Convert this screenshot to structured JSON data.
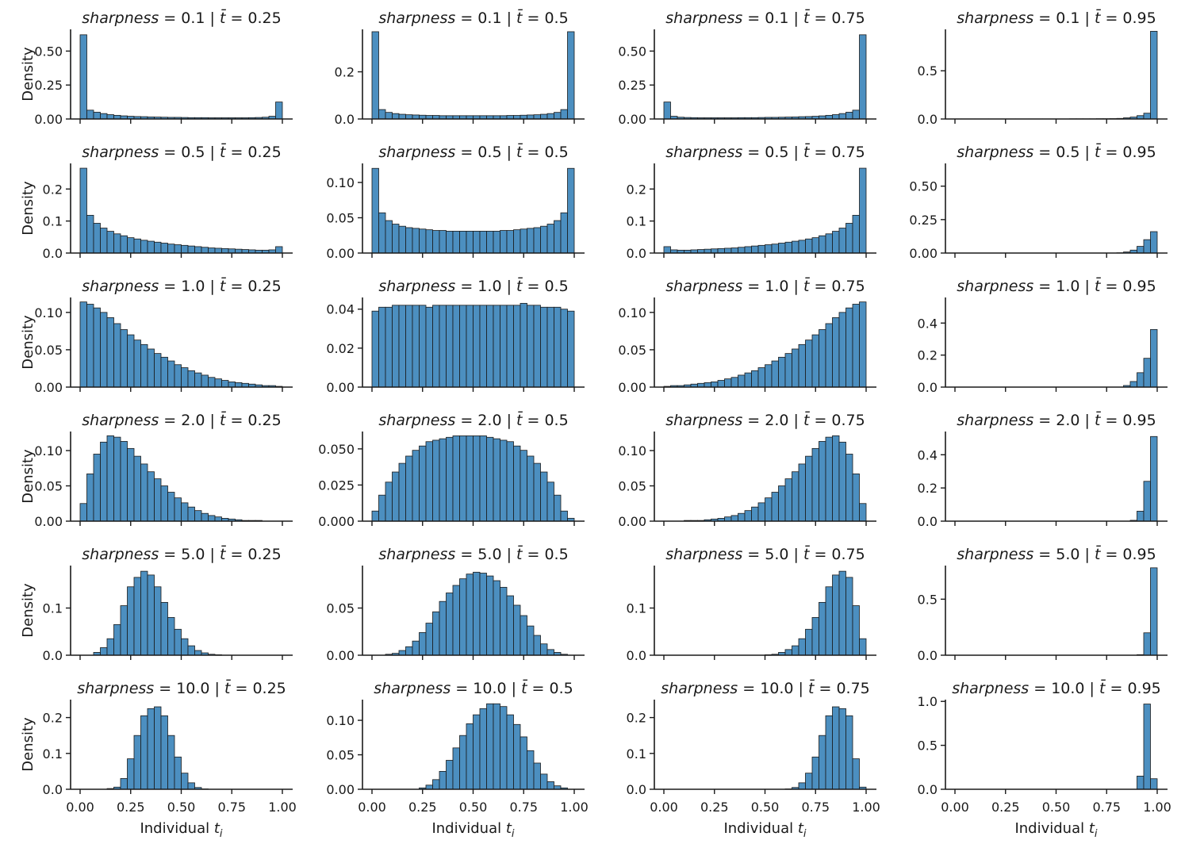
{
  "figure": {
    "bar_color": "#4c8fc0",
    "edge_color": "#1a1a1a",
    "ylabel": "Density",
    "xlabel_text": "Individual ",
    "xlabel_var": "t",
    "xlabel_sub": "i",
    "title_var": "sharpness",
    "title_tbar": "t̄",
    "x_ticks": [
      "0.00",
      "0.25",
      "0.50",
      "0.75",
      "1.00"
    ]
  },
  "chart_data": {
    "type": "histogram-grid",
    "bins": 30,
    "x_range": [
      0,
      1
    ],
    "sharpness_values": [
      "0.1",
      "0.5",
      "1.0",
      "2.0",
      "5.0",
      "10.0"
    ],
    "tbar_values": [
      "0.25",
      "0.5",
      "0.75",
      "0.95"
    ],
    "panels": [
      {
        "sharpness": "0.1",
        "tbar": "0.25",
        "ylim": [
          0,
          0.66
        ],
        "yticks": [
          "0.00",
          "0.25",
          "0.50"
        ],
        "values": [
          0.62,
          0.065,
          0.05,
          0.04,
          0.032,
          0.027,
          0.023,
          0.02,
          0.018,
          0.017,
          0.015,
          0.014,
          0.013,
          0.012,
          0.012,
          0.011,
          0.01,
          0.01,
          0.01,
          0.009,
          0.009,
          0.009,
          0.009,
          0.009,
          0.009,
          0.01,
          0.011,
          0.013,
          0.02,
          0.125
        ]
      },
      {
        "sharpness": "0.1",
        "tbar": "0.5",
        "ylim": [
          0,
          0.38
        ],
        "yticks": [
          "0.0",
          "0.2"
        ],
        "values": [
          0.37,
          0.04,
          0.028,
          0.023,
          0.02,
          0.018,
          0.017,
          0.016,
          0.015,
          0.015,
          0.014,
          0.014,
          0.014,
          0.014,
          0.014,
          0.014,
          0.014,
          0.014,
          0.014,
          0.014,
          0.015,
          0.015,
          0.016,
          0.017,
          0.018,
          0.02,
          0.023,
          0.028,
          0.04,
          0.37
        ]
      },
      {
        "sharpness": "0.1",
        "tbar": "0.75",
        "ylim": [
          0,
          0.66
        ],
        "yticks": [
          "0.00",
          "0.25",
          "0.50"
        ],
        "values": [
          0.125,
          0.02,
          0.013,
          0.011,
          0.01,
          0.009,
          0.009,
          0.009,
          0.009,
          0.009,
          0.009,
          0.01,
          0.01,
          0.01,
          0.011,
          0.012,
          0.012,
          0.013,
          0.014,
          0.015,
          0.017,
          0.018,
          0.02,
          0.023,
          0.027,
          0.032,
          0.04,
          0.05,
          0.065,
          0.62
        ]
      },
      {
        "sharpness": "0.1",
        "tbar": "0.95",
        "ylim": [
          0,
          0.93
        ],
        "yticks": [
          "0.0",
          "0.5"
        ],
        "values": [
          0.001,
          0.001,
          0.001,
          0.001,
          0.001,
          0.001,
          0.001,
          0.001,
          0.001,
          0.001,
          0.001,
          0.001,
          0.001,
          0.001,
          0.001,
          0.001,
          0.001,
          0.002,
          0.002,
          0.002,
          0.002,
          0.003,
          0.003,
          0.004,
          0.006,
          0.012,
          0.02,
          0.035,
          0.06,
          0.91
        ]
      },
      {
        "sharpness": "0.5",
        "tbar": "0.25",
        "ylim": [
          0,
          0.28
        ],
        "yticks": [
          "0.0",
          "0.1",
          "0.2"
        ],
        "values": [
          0.265,
          0.118,
          0.093,
          0.078,
          0.068,
          0.06,
          0.054,
          0.048,
          0.044,
          0.04,
          0.037,
          0.034,
          0.031,
          0.028,
          0.026,
          0.024,
          0.022,
          0.02,
          0.018,
          0.016,
          0.015,
          0.014,
          0.013,
          0.012,
          0.011,
          0.01,
          0.009,
          0.009,
          0.01,
          0.02
        ]
      },
      {
        "sharpness": "0.5",
        "tbar": "0.5",
        "ylim": [
          0,
          0.127
        ],
        "yticks": [
          "0.00",
          "0.05",
          "0.10"
        ],
        "values": [
          0.12,
          0.057,
          0.046,
          0.041,
          0.038,
          0.036,
          0.035,
          0.034,
          0.033,
          0.032,
          0.032,
          0.031,
          0.031,
          0.031,
          0.031,
          0.031,
          0.031,
          0.031,
          0.031,
          0.032,
          0.032,
          0.033,
          0.034,
          0.035,
          0.036,
          0.038,
          0.041,
          0.046,
          0.057,
          0.12
        ]
      },
      {
        "sharpness": "0.5",
        "tbar": "0.75",
        "ylim": [
          0,
          0.28
        ],
        "yticks": [
          "0.0",
          "0.1",
          "0.2"
        ],
        "values": [
          0.02,
          0.01,
          0.009,
          0.009,
          0.01,
          0.011,
          0.012,
          0.013,
          0.014,
          0.015,
          0.016,
          0.018,
          0.02,
          0.022,
          0.024,
          0.026,
          0.028,
          0.031,
          0.034,
          0.037,
          0.04,
          0.044,
          0.048,
          0.054,
          0.06,
          0.068,
          0.078,
          0.093,
          0.118,
          0.265
        ]
      },
      {
        "sharpness": "0.5",
        "tbar": "0.95",
        "ylim": [
          0,
          0.67
        ],
        "yticks": [
          "0.00",
          "0.25",
          "0.50"
        ],
        "values": [
          0,
          0,
          0,
          0,
          0,
          0,
          0,
          0,
          0,
          0,
          0,
          0,
          0,
          0,
          0,
          0,
          0,
          0,
          0,
          0,
          0,
          0,
          0,
          0,
          0.002,
          0.008,
          0.022,
          0.05,
          0.1,
          0.16
        ]
      },
      {
        "sharpness": "1.0",
        "tbar": "0.25",
        "ylim": [
          0,
          0.12
        ],
        "yticks": [
          "0.00",
          "0.05",
          "0.10"
        ],
        "values": [
          0.114,
          0.111,
          0.106,
          0.1,
          0.093,
          0.085,
          0.077,
          0.07,
          0.063,
          0.057,
          0.051,
          0.045,
          0.04,
          0.035,
          0.03,
          0.026,
          0.022,
          0.019,
          0.016,
          0.013,
          0.011,
          0.009,
          0.007,
          0.006,
          0.005,
          0.004,
          0.003,
          0.002,
          0.002,
          0.001
        ]
      },
      {
        "sharpness": "1.0",
        "tbar": "0.5",
        "ylim": [
          0,
          0.046
        ],
        "yticks": [
          "0.00",
          "0.02",
          "0.04"
        ],
        "values": [
          0.039,
          0.041,
          0.041,
          0.042,
          0.042,
          0.042,
          0.042,
          0.042,
          0.041,
          0.042,
          0.042,
          0.042,
          0.042,
          0.042,
          0.042,
          0.042,
          0.042,
          0.042,
          0.042,
          0.042,
          0.042,
          0.042,
          0.043,
          0.042,
          0.042,
          0.041,
          0.041,
          0.041,
          0.04,
          0.039
        ]
      },
      {
        "sharpness": "1.0",
        "tbar": "0.75",
        "ylim": [
          0,
          0.12
        ],
        "yticks": [
          "0.00",
          "0.05",
          "0.10"
        ],
        "values": [
          0.001,
          0.002,
          0.002,
          0.003,
          0.004,
          0.005,
          0.006,
          0.007,
          0.009,
          0.011,
          0.013,
          0.016,
          0.019,
          0.022,
          0.026,
          0.03,
          0.035,
          0.04,
          0.045,
          0.051,
          0.057,
          0.063,
          0.07,
          0.077,
          0.085,
          0.093,
          0.1,
          0.106,
          0.111,
          0.114
        ]
      },
      {
        "sharpness": "1.0",
        "tbar": "0.95",
        "ylim": [
          0,
          0.56
        ],
        "yticks": [
          "0.0",
          "0.2",
          "0.4"
        ],
        "values": [
          0,
          0,
          0,
          0,
          0,
          0,
          0,
          0,
          0,
          0,
          0,
          0,
          0,
          0,
          0,
          0,
          0,
          0,
          0,
          0,
          0,
          0,
          0,
          0,
          0,
          0.01,
          0.035,
          0.09,
          0.18,
          0.36
        ]
      },
      {
        "sharpness": "2.0",
        "tbar": "0.25",
        "ylim": [
          0,
          0.127
        ],
        "yticks": [
          "0.00",
          "0.05",
          "0.10"
        ],
        "values": [
          0.025,
          0.067,
          0.095,
          0.112,
          0.121,
          0.119,
          0.113,
          0.103,
          0.092,
          0.081,
          0.07,
          0.06,
          0.05,
          0.041,
          0.033,
          0.026,
          0.02,
          0.015,
          0.011,
          0.008,
          0.006,
          0.004,
          0.003,
          0.002,
          0.001,
          0.001,
          0.001,
          0,
          0,
          0
        ]
      },
      {
        "sharpness": "2.0",
        "tbar": "0.5",
        "ylim": [
          0,
          0.062
        ],
        "yticks": [
          "0.000",
          "0.025",
          "0.050"
        ],
        "values": [
          0.007,
          0.018,
          0.027,
          0.034,
          0.04,
          0.045,
          0.049,
          0.052,
          0.055,
          0.056,
          0.057,
          0.058,
          0.059,
          0.059,
          0.059,
          0.059,
          0.059,
          0.058,
          0.057,
          0.056,
          0.055,
          0.052,
          0.049,
          0.045,
          0.04,
          0.034,
          0.027,
          0.018,
          0.007,
          0.002
        ]
      },
      {
        "sharpness": "2.0",
        "tbar": "0.75",
        "ylim": [
          0,
          0.127
        ],
        "yticks": [
          "0.00",
          "0.05",
          "0.10"
        ],
        "values": [
          0,
          0,
          0,
          0.001,
          0.001,
          0.001,
          0.002,
          0.003,
          0.004,
          0.006,
          0.008,
          0.011,
          0.015,
          0.02,
          0.026,
          0.033,
          0.041,
          0.05,
          0.06,
          0.07,
          0.081,
          0.092,
          0.103,
          0.113,
          0.119,
          0.121,
          0.112,
          0.095,
          0.067,
          0.025
        ]
      },
      {
        "sharpness": "2.0",
        "tbar": "0.95",
        "ylim": [
          0,
          0.54
        ],
        "yticks": [
          "0.0",
          "0.2",
          "0.4"
        ],
        "values": [
          0,
          0,
          0,
          0,
          0,
          0,
          0,
          0,
          0,
          0,
          0,
          0,
          0,
          0,
          0,
          0,
          0,
          0,
          0,
          0,
          0,
          0,
          0,
          0,
          0,
          0,
          0.005,
          0.06,
          0.24,
          0.51
        ]
      },
      {
        "sharpness": "5.0",
        "tbar": "0.25",
        "ylim": [
          0,
          0.19
        ],
        "yticks": [
          "0.0",
          "0.1"
        ],
        "values": [
          0,
          0,
          0.006,
          0.016,
          0.035,
          0.065,
          0.105,
          0.145,
          0.165,
          0.178,
          0.17,
          0.145,
          0.112,
          0.08,
          0.055,
          0.035,
          0.02,
          0.01,
          0.005,
          0.002,
          0.001,
          0,
          0,
          0,
          0,
          0,
          0,
          0,
          0,
          0
        ]
      },
      {
        "sharpness": "5.0",
        "tbar": "0.5",
        "ylim": [
          0,
          0.095
        ],
        "yticks": [
          "0.00",
          "0.05"
        ],
        "values": [
          0,
          0,
          0.001,
          0.002,
          0.005,
          0.009,
          0.015,
          0.024,
          0.034,
          0.046,
          0.057,
          0.066,
          0.074,
          0.081,
          0.086,
          0.088,
          0.087,
          0.084,
          0.079,
          0.072,
          0.063,
          0.053,
          0.042,
          0.031,
          0.021,
          0.012,
          0.006,
          0.003,
          0.001,
          0
        ]
      },
      {
        "sharpness": "5.0",
        "tbar": "0.75",
        "ylim": [
          0,
          0.19
        ],
        "yticks": [
          "0.0",
          "0.1"
        ],
        "values": [
          0,
          0,
          0,
          0,
          0,
          0,
          0,
          0,
          0,
          0,
          0,
          0,
          0,
          0,
          0,
          0.001,
          0.002,
          0.006,
          0.012,
          0.02,
          0.035,
          0.055,
          0.08,
          0.112,
          0.145,
          0.17,
          0.178,
          0.165,
          0.105,
          0.035
        ]
      },
      {
        "sharpness": "5.0",
        "tbar": "0.95",
        "ylim": [
          0,
          0.8
        ],
        "yticks": [
          "0.0",
          "0.5"
        ],
        "values": [
          0,
          0,
          0,
          0,
          0,
          0,
          0,
          0,
          0,
          0,
          0,
          0,
          0,
          0,
          0,
          0,
          0,
          0,
          0,
          0,
          0,
          0,
          0,
          0,
          0,
          0,
          0,
          0.005,
          0.2,
          0.78
        ]
      },
      {
        "sharpness": "10.0",
        "tbar": "0.25",
        "ylim": [
          0,
          0.25
        ],
        "yticks": [
          "0.0",
          "0.1",
          "0.2"
        ],
        "values": [
          0,
          0,
          0,
          0,
          0.002,
          0.006,
          0.03,
          0.085,
          0.15,
          0.205,
          0.225,
          0.23,
          0.205,
          0.15,
          0.09,
          0.045,
          0.018,
          0.005,
          0.001,
          0,
          0,
          0,
          0,
          0,
          0,
          0,
          0,
          0,
          0,
          0
        ]
      },
      {
        "sharpness": "10.0",
        "tbar": "0.5",
        "ylim": [
          0,
          0.13
        ],
        "yticks": [
          "0.00",
          "0.05",
          "0.10"
        ],
        "values": [
          0,
          0,
          0,
          0,
          0,
          0,
          0,
          0.002,
          0.006,
          0.014,
          0.026,
          0.042,
          0.06,
          0.078,
          0.095,
          0.108,
          0.117,
          0.124,
          0.124,
          0.12,
          0.108,
          0.094,
          0.076,
          0.056,
          0.038,
          0.022,
          0.011,
          0.005,
          0.002,
          0
        ]
      },
      {
        "sharpness": "10.0",
        "tbar": "0.75",
        "ylim": [
          0,
          0.25
        ],
        "yticks": [
          "0.0",
          "0.1",
          "0.2"
        ],
        "values": [
          0,
          0,
          0,
          0,
          0,
          0,
          0,
          0,
          0,
          0,
          0,
          0,
          0,
          0,
          0,
          0,
          0,
          0,
          0.001,
          0.005,
          0.018,
          0.045,
          0.09,
          0.15,
          0.205,
          0.23,
          0.225,
          0.205,
          0.085,
          0.006
        ]
      },
      {
        "sharpness": "10.0",
        "tbar": "0.95",
        "ylim": [
          0,
          1.02
        ],
        "yticks": [
          "0.0",
          "0.5",
          "1.0"
        ],
        "values": [
          0,
          0,
          0,
          0,
          0,
          0,
          0,
          0,
          0,
          0,
          0,
          0,
          0,
          0,
          0,
          0,
          0,
          0,
          0,
          0,
          0,
          0,
          0,
          0,
          0,
          0,
          0,
          0.15,
          0.97,
          0.12
        ]
      }
    ]
  }
}
